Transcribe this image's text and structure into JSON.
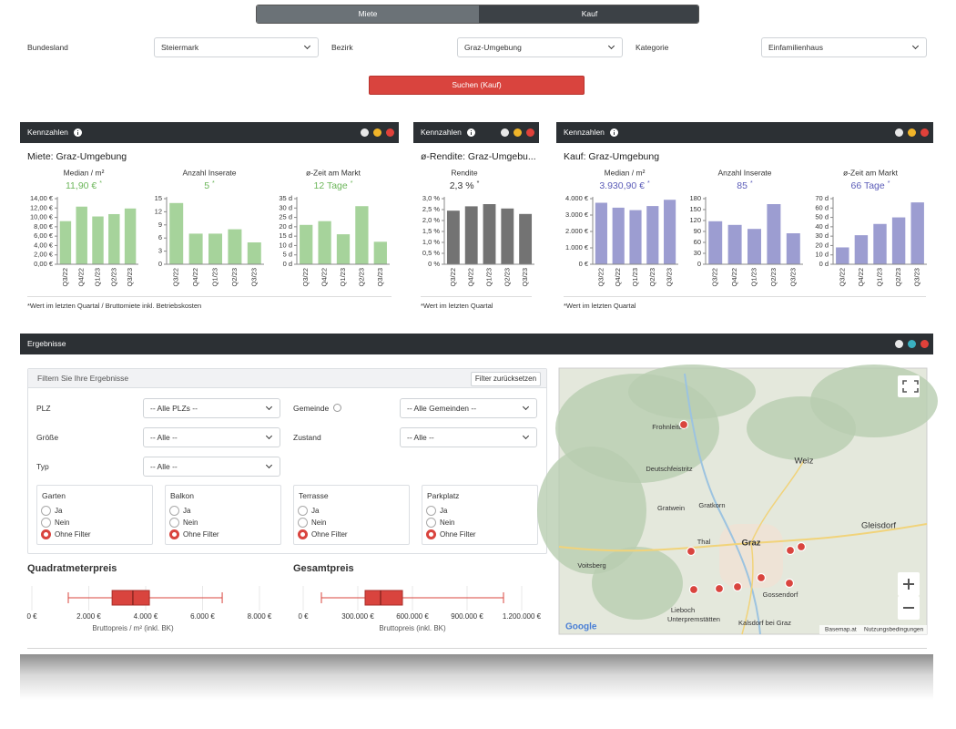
{
  "tabs": [
    "Miete",
    "Kauf"
  ],
  "search_filters": [
    {
      "label": "Bundesland",
      "value": "Steiermark"
    },
    {
      "label": "Bezirk",
      "value": "Graz-Umgebung"
    },
    {
      "label": "Kategorie",
      "value": "Einfamilienhaus"
    }
  ],
  "search_button": "Suchen (Kauf)",
  "panels": [
    {
      "header": "Kennzahlen",
      "title": "Miete: Graz-Umgebung",
      "footnote": "*Wert im letzten Quartal / Bruttomiete inkl. Betriebskosten"
    },
    {
      "header": "Kennzahlen",
      "title": "ø-Rendite: Graz-Umgebu...",
      "footnote": "*Wert im letzten Quartal"
    },
    {
      "header": "Kennzahlen",
      "title": "Kauf: Graz-Umgebung",
      "footnote": "*Wert im letzten Quartal"
    }
  ],
  "results": {
    "header": "Ergebnisse",
    "filter_title": "Filtern Sie Ihre Ergebnisse",
    "reset_button": "Filter zurücksetzen",
    "selects": [
      {
        "label": "PLZ",
        "value": "-- Alle PLZs --"
      },
      {
        "label": "Gemeinde",
        "value": "-- Alle Gemeinden --"
      },
      {
        "label": "Größe",
        "value": "-- Alle --"
      },
      {
        "label": "Zustand",
        "value": "-- Alle --"
      },
      {
        "label": "Typ",
        "value": "-- Alle --"
      }
    ],
    "radio_groups": [
      {
        "title": "Garten",
        "options": [
          "Ja",
          "Nein",
          "Ohne Filter"
        ],
        "selected": 2
      },
      {
        "title": "Balkon",
        "options": [
          "Ja",
          "Nein",
          "Ohne Filter"
        ],
        "selected": 2
      },
      {
        "title": "Terrasse",
        "options": [
          "Ja",
          "Nein",
          "Ohne Filter"
        ],
        "selected": 2
      },
      {
        "title": "Parkplatz",
        "options": [
          "Ja",
          "Nein",
          "Ohne Filter"
        ],
        "selected": 2
      }
    ]
  },
  "map": {
    "places": [
      "Frohnleiten",
      "Deutschfeistritz",
      "Weiz",
      "Gratwein",
      "Gratkorn",
      "Graz",
      "Voitsberg",
      "Gleisdorf",
      "Gossendorf",
      "Lieboch",
      "Thal",
      "Unterpremstätten",
      "Kalsdorf bei Graz"
    ],
    "logo": "Google",
    "attribution": [
      "Basemap.at",
      "Nutzungsbedingungen"
    ]
  },
  "chart_data": [
    {
      "type": "bar",
      "title": "Median / m²",
      "subtitle": "11,90 €",
      "note_marker": "*",
      "categories": [
        "Q3/22",
        "Q4/22",
        "Q1/23",
        "Q2/23",
        "Q3/23"
      ],
      "values": [
        9.2,
        12.3,
        10.2,
        10.7,
        11.9
      ],
      "ylim": [
        0,
        14
      ],
      "yticks": [
        {
          "value": 0,
          "label": "0,00 €"
        },
        {
          "value": 2,
          "label": "2,00 €"
        },
        {
          "value": 4,
          "label": "4,00 €"
        },
        {
          "value": 6,
          "label": "6,00 €"
        },
        {
          "value": 8,
          "label": "8,00 €"
        },
        {
          "value": 10,
          "label": "10,00 €"
        },
        {
          "value": 12,
          "label": "12,00 €"
        },
        {
          "value": 14,
          "label": "14,00 €"
        }
      ],
      "color": "#a6d39b",
      "value_color": "#6cb65a"
    },
    {
      "type": "bar",
      "title": "Anzahl Inserate",
      "subtitle": "5",
      "note_marker": "*",
      "categories": [
        "Q3/22",
        "Q4/22",
        "Q1/23",
        "Q2/23",
        "Q3/23"
      ],
      "values": [
        14,
        7,
        7,
        8,
        5
      ],
      "ylim": [
        0,
        15
      ],
      "yticks": [
        0,
        3,
        6,
        9,
        12,
        15
      ],
      "color": "#a6d39b",
      "value_color": "#6cb65a"
    },
    {
      "type": "bar",
      "title": "ø-Zeit am Markt",
      "subtitle": "12 Tage",
      "note_marker": "*",
      "categories": [
        "Q3/22",
        "Q4/22",
        "Q1/23",
        "Q2/23",
        "Q3/23"
      ],
      "values": [
        21,
        23,
        16,
        31,
        12
      ],
      "ylim": [
        0,
        35
      ],
      "yticks": [
        {
          "value": 0,
          "label": "0 d"
        },
        {
          "value": 5,
          "label": "5 d"
        },
        {
          "value": 10,
          "label": "10 d"
        },
        {
          "value": 15,
          "label": "15 d"
        },
        {
          "value": 20,
          "label": "20 d"
        },
        {
          "value": 25,
          "label": "25 d"
        },
        {
          "value": 30,
          "label": "30 d"
        },
        {
          "value": 35,
          "label": "35 d"
        }
      ],
      "color": "#a6d39b",
      "value_color": "#6cb65a"
    },
    {
      "type": "bar",
      "title": "Rendite",
      "subtitle": "2,3 %",
      "note_marker": "*",
      "categories": [
        "Q3/22",
        "Q4/22",
        "Q1/23",
        "Q2/23",
        "Q3/23"
      ],
      "values": [
        2.45,
        2.65,
        2.75,
        2.55,
        2.3
      ],
      "ylim": [
        0,
        3
      ],
      "yticks": [
        {
          "value": 0,
          "label": "0 %"
        },
        {
          "value": 0.5,
          "label": "0,5 %"
        },
        {
          "value": 1,
          "label": "1,0 %"
        },
        {
          "value": 1.5,
          "label": "1,5 %"
        },
        {
          "value": 2,
          "label": "2,0 %"
        },
        {
          "value": 2.5,
          "label": "2,5 %"
        },
        {
          "value": 3,
          "label": "3,0 %"
        }
      ],
      "color": "#737373",
      "value_color": "#333333"
    },
    {
      "type": "bar",
      "title": "Median / m²",
      "subtitle": "3.930,90 €",
      "note_marker": "*",
      "categories": [
        "Q3/22",
        "Q4/22",
        "Q1/23",
        "Q2/23",
        "Q3/23"
      ],
      "values": [
        3750,
        3450,
        3300,
        3550,
        3930.9
      ],
      "ylim": [
        0,
        4000
      ],
      "yticks": [
        {
          "value": 0,
          "label": "0 €"
        },
        {
          "value": 1000,
          "label": "1.000 €"
        },
        {
          "value": 2000,
          "label": "2.000 €"
        },
        {
          "value": 3000,
          "label": "3.000 €"
        },
        {
          "value": 4000,
          "label": "4.000 €"
        }
      ],
      "color": "#9c9dd1",
      "value_color": "#5b5cb8"
    },
    {
      "type": "bar",
      "title": "Anzahl Inserate",
      "subtitle": "85",
      "note_marker": "*",
      "categories": [
        "Q3/22",
        "Q4/22",
        "Q1/23",
        "Q2/23",
        "Q3/23"
      ],
      "values": [
        118,
        108,
        97,
        165,
        85
      ],
      "ylim": [
        0,
        180
      ],
      "yticks": [
        0,
        30,
        60,
        90,
        120,
        150,
        180
      ],
      "color": "#9c9dd1",
      "value_color": "#5b5cb8"
    },
    {
      "type": "bar",
      "title": "ø-Zeit am Markt",
      "subtitle": "66 Tage",
      "note_marker": "*",
      "categories": [
        "Q3/22",
        "Q4/22",
        "Q1/23",
        "Q2/23",
        "Q3/23"
      ],
      "values": [
        18,
        31,
        43,
        50,
        66
      ],
      "ylim": [
        0,
        70
      ],
      "yticks": [
        {
          "value": 0,
          "label": "0 d"
        },
        {
          "value": 10,
          "label": "10 d"
        },
        {
          "value": 20,
          "label": "20 d"
        },
        {
          "value": 30,
          "label": "30 d"
        },
        {
          "value": 40,
          "label": "40 d"
        },
        {
          "value": 50,
          "label": "50 d"
        },
        {
          "value": 60,
          "label": "60 d"
        },
        {
          "value": 70,
          "label": "70 d"
        }
      ],
      "color": "#9c9dd1",
      "value_color": "#5b5cb8"
    },
    {
      "type": "box",
      "title": "Quadratmeterpreis",
      "xlabel": "Bruttopreis / m² (inkl. BK)",
      "box": {
        "min": 1280,
        "q1": 2820,
        "median": 3550,
        "q3": 4130,
        "max": 6690
      },
      "xlim": [
        0,
        8000
      ],
      "xticks": [
        {
          "value": 0,
          "label": "0 €"
        },
        {
          "value": 2000,
          "label": "2.000 €"
        },
        {
          "value": 4000,
          "label": "4.000 €"
        },
        {
          "value": 6000,
          "label": "6.000 €"
        },
        {
          "value": 8000,
          "label": "8.000 €"
        }
      ],
      "color": "#d9443e"
    },
    {
      "type": "box",
      "title": "Gesamtpreis",
      "xlabel": "Bruttopreis (inkl. BK)",
      "box": {
        "min": 100000,
        "q1": 340000,
        "median": 425000,
        "q3": 545000,
        "max": 1100000
      },
      "xlim": [
        0,
        1200000
      ],
      "xticks": [
        {
          "value": 0,
          "label": "0 €"
        },
        {
          "value": 300000,
          "label": "300.000 €"
        },
        {
          "value": 600000,
          "label": "600.000 €"
        },
        {
          "value": 900000,
          "label": "900.000 €"
        },
        {
          "value": 1200000,
          "label": "1.200.000 €"
        }
      ],
      "color": "#d9443e"
    }
  ]
}
